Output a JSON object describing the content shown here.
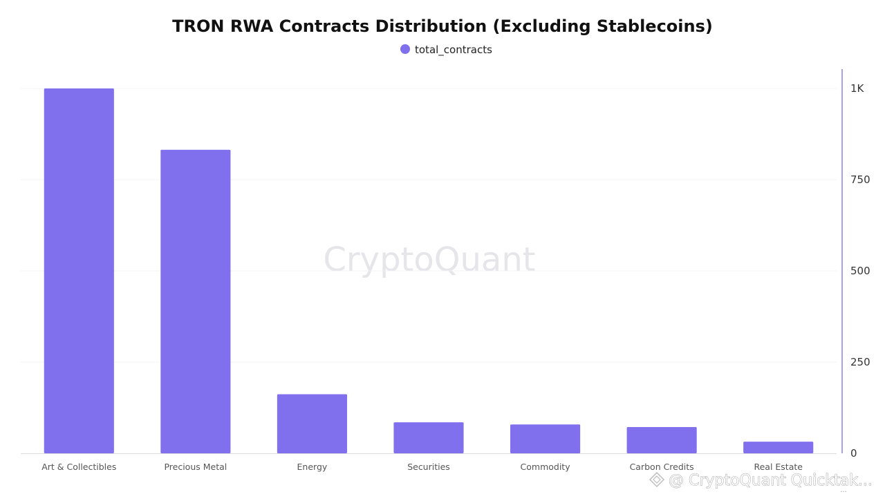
{
  "colors": {
    "bar": "#8070ee",
    "axis": "#8b80e0",
    "grid": "#f3f3f6",
    "baseline": "#dddddd",
    "watermark": "#e6e6ea"
  },
  "watermark": {
    "text": "CryptoQuant"
  },
  "credit": {
    "text": "@ CryptoQuant Quicktak...",
    "subtext": "...",
    "icon": "diamond-logo-icon"
  },
  "chart_data": {
    "type": "bar",
    "title": "TRON RWA Contracts Distribution (Excluding Stablecoins)",
    "legend": {
      "position": "top-center",
      "entries": [
        "total_contracts"
      ]
    },
    "xlabel": "",
    "ylabel": "",
    "ylim": [
      0,
      1000
    ],
    "y_ticks": [
      0,
      250,
      500,
      750,
      1000
    ],
    "y_tick_labels": [
      "0",
      "250",
      "500",
      "750",
      "1K"
    ],
    "y_axis_side": "right",
    "grid": true,
    "categories": [
      "Art & Collectibles",
      "Precious Metal",
      "Energy",
      "Securities",
      "Commodity",
      "Carbon Credits",
      "Real Estate"
    ],
    "series": [
      {
        "name": "total_contracts",
        "values": [
          1000,
          832,
          162,
          85,
          79,
          72,
          32
        ]
      }
    ]
  }
}
